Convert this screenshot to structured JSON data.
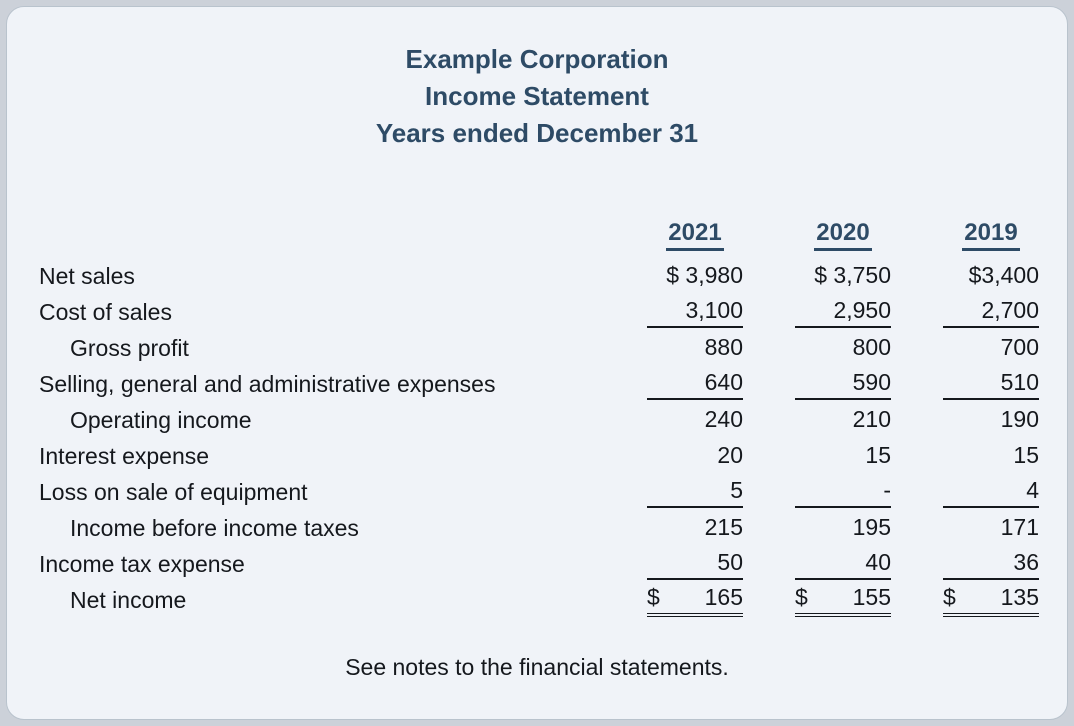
{
  "page": {
    "title_lines": [
      "Example Corporation",
      "Income Statement",
      "Years ended December 31"
    ],
    "footer_note": "See notes to the financial statements."
  },
  "colors": {
    "heading_accent": "#2e4b66",
    "body_text": "#15181d",
    "card_background": "#f0f3f8",
    "page_background": "#ccd1d9"
  },
  "chart_data": {
    "type": "table",
    "title": "Example Corporation Income Statement, Years ended December 31",
    "columns": [
      "2021",
      "2020",
      "2019"
    ],
    "line_items": [
      {
        "label": "Net sales",
        "values": [
          3980,
          3750,
          3400
        ]
      },
      {
        "label": "Cost of sales",
        "values": [
          3100,
          2950,
          2700
        ]
      },
      {
        "label": "Gross profit",
        "values": [
          880,
          800,
          700
        ]
      },
      {
        "label": "Selling, general and administrative expenses",
        "values": [
          640,
          590,
          510
        ]
      },
      {
        "label": "Operating income",
        "values": [
          240,
          210,
          190
        ]
      },
      {
        "label": "Interest expense",
        "values": [
          20,
          15,
          15
        ]
      },
      {
        "label": "Loss on sale of equipment",
        "values": [
          5,
          null,
          4
        ]
      },
      {
        "label": "Income before income taxes",
        "values": [
          215,
          195,
          171
        ]
      },
      {
        "label": "Income tax expense",
        "values": [
          50,
          40,
          36
        ]
      },
      {
        "label": "Net income",
        "values": [
          165,
          155,
          135
        ]
      }
    ]
  },
  "table": {
    "years": [
      "2021",
      "2020",
      "2019"
    ],
    "rows": [
      {
        "label": "Net sales",
        "values": [
          "$ 3,980",
          "$ 3,750",
          "$3,400"
        ]
      },
      {
        "label": "Cost of sales",
        "values": [
          "3,100",
          "2,950",
          "2,700"
        ]
      },
      {
        "label": "Gross profit",
        "values": [
          "880",
          "800",
          "700"
        ]
      },
      {
        "label": "Selling, general and administrative expenses",
        "values": [
          "640",
          "590",
          "510"
        ]
      },
      {
        "label": "Operating income",
        "values": [
          "240",
          "210",
          "190"
        ]
      },
      {
        "label": "Interest expense",
        "values": [
          "20",
          "15",
          "15"
        ]
      },
      {
        "label": "Loss on sale of equipment",
        "values": [
          "5",
          "-",
          "4"
        ]
      },
      {
        "label": "Income before income taxes",
        "values": [
          "215",
          "195",
          "171"
        ]
      },
      {
        "label": "Income tax expense",
        "values": [
          "50",
          "40",
          "36"
        ]
      },
      {
        "label": "Net income",
        "dollar": "$",
        "values": [
          "165",
          "155",
          "135"
        ]
      }
    ]
  }
}
